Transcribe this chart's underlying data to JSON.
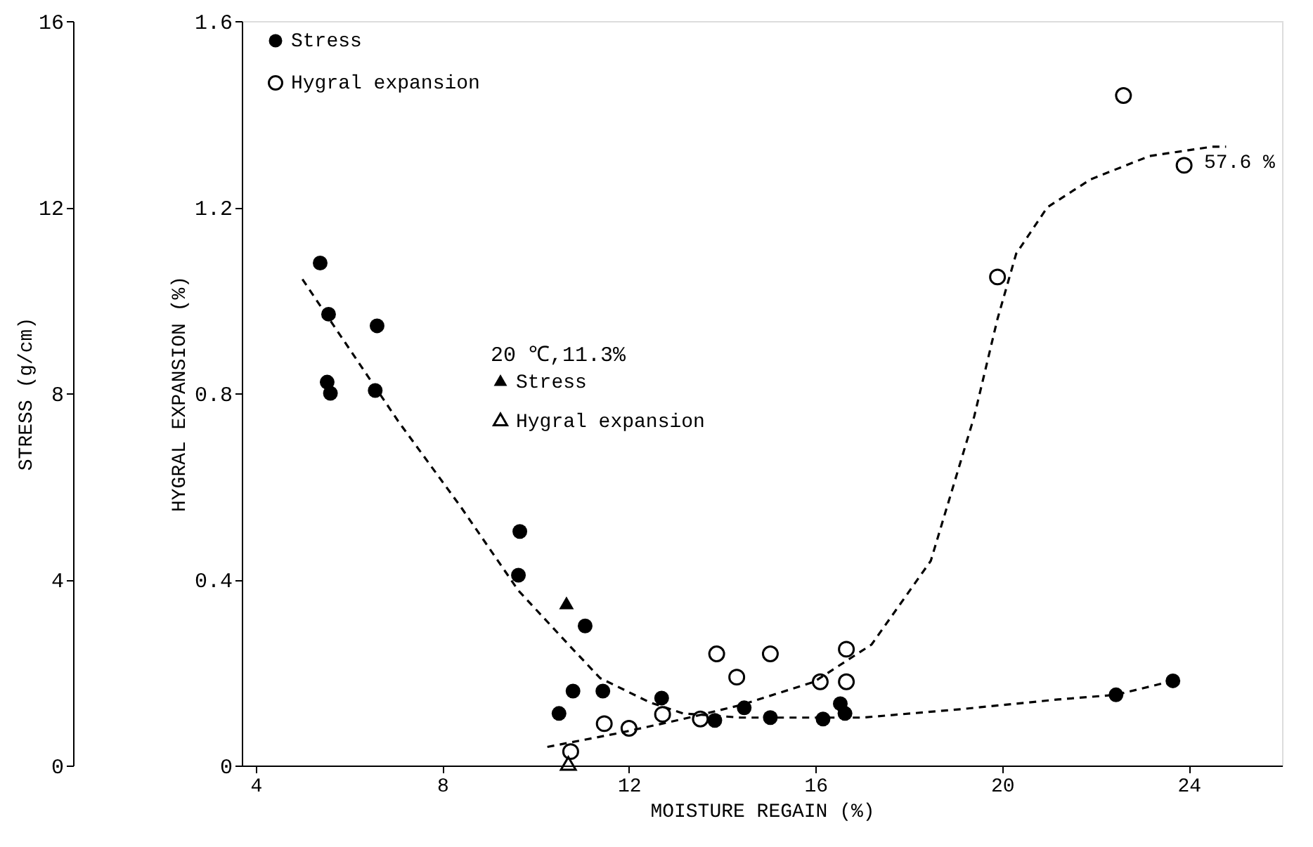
{
  "chart_data": {
    "type": "scatter",
    "xlabel": "MOISTURE REGAIN (%)",
    "ylabel": "STRESS (g/cm)",
    "y2label": "HYGRAL EXPANSION (%)",
    "xlim": [
      3.7,
      26
    ],
    "xticks": [
      4,
      8,
      12,
      16,
      20,
      24
    ],
    "ylim": [
      0,
      16
    ],
    "yticks": [
      0,
      4,
      8,
      12,
      16
    ],
    "y2lim": [
      0,
      1.6
    ],
    "y2ticks": [
      0,
      0.4,
      0.8,
      1.2,
      1.6
    ],
    "grid": false,
    "legend": "top left",
    "legend_title": "20 ℃,11.3%",
    "annotations": [
      "57.6 %"
    ],
    "series": [
      {
        "name": "Stress",
        "marker": "circle",
        "color": "#000000",
        "axis": "y",
        "x": [
          5.38,
          5.56,
          6.6,
          5.53,
          5.6,
          6.56,
          9.66,
          9.63,
          11.06,
          10.8,
          11.44,
          10.5,
          12.7,
          13.84,
          14.47,
          15.03,
          16.16,
          16.53,
          16.63,
          22.44,
          23.66
        ],
        "values": [
          10.8,
          9.7,
          9.45,
          8.24,
          8.0,
          8.06,
          5.03,
          4.09,
          3.0,
          1.6,
          1.6,
          1.12,
          1.45,
          0.97,
          1.24,
          1.03,
          1.0,
          1.33,
          1.12,
          1.52,
          1.82
        ]
      },
      {
        "name": "Hygral expansion",
        "marker": "circle",
        "color": "#000000",
        "axis": "y2",
        "x": [
          10.75,
          11.47,
          12.0,
          12.72,
          13.53,
          13.88,
          14.31,
          15.03,
          16.1,
          16.66,
          16.66,
          19.9,
          22.6,
          23.9
        ],
        "values": [
          0.03,
          0.09,
          0.08,
          0.11,
          0.1,
          0.24,
          0.19,
          0.24,
          0.18,
          0.25,
          0.18,
          1.05,
          1.44,
          1.29
        ]
      },
      {
        "name": "Stress",
        "marker": "triangle",
        "color": "#000000",
        "axis": "y",
        "x": [
          10.66
        ],
        "values": [
          3.45
        ]
      },
      {
        "name": "Hygral expansion",
        "marker": "triangle",
        "color": "#000000",
        "axis": "y2",
        "x": [
          10.7
        ],
        "values": [
          0.0
        ]
      },
      {
        "type": "line",
        "line_style": "dashed",
        "color": "#000000",
        "axis": "y",
        "x": [
          5.0,
          7.06,
          8.38,
          9.63,
          10.75,
          11.38,
          12.44,
          13.16,
          14.4,
          17.0,
          19.1,
          21.2,
          22.44,
          23.66
        ],
        "values": [
          10.45,
          7.39,
          5.58,
          3.76,
          2.55,
          1.88,
          1.36,
          1.12,
          1.03,
          1.03,
          1.21,
          1.42,
          1.52,
          1.82
        ]
      },
      {
        "type": "line",
        "line_style": "dashed",
        "color": "#000000",
        "axis": "y2",
        "x": [
          10.25,
          11.8,
          13.16,
          14.4,
          15.97,
          17.2,
          18.47,
          19.4,
          19.9,
          20.3,
          20.97,
          21.9,
          23.16,
          24.5,
          24.8
        ],
        "values": [
          0.04,
          0.07,
          0.1,
          0.13,
          0.18,
          0.26,
          0.44,
          0.75,
          0.96,
          1.1,
          1.2,
          1.26,
          1.31,
          1.33,
          1.33
        ]
      }
    ]
  }
}
